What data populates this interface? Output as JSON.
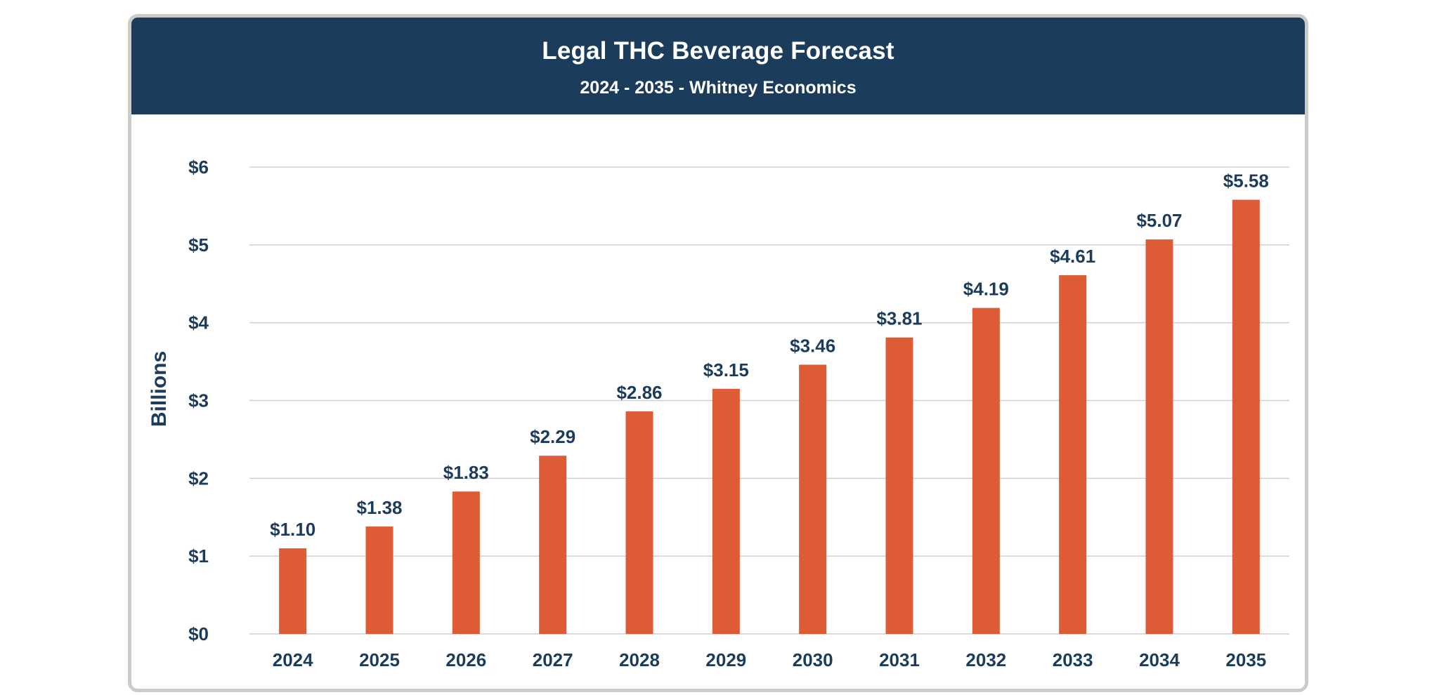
{
  "header": {
    "title": "Legal THC Beverage Forecast",
    "subtitle": "2024 - 2035 - Whitney Economics"
  },
  "colors": {
    "header_bg": "#1c3c5b",
    "bar": "#dd5b35",
    "text": "#1c3c5b",
    "gridline": "#cfcfcf",
    "card_border": "#cbccca"
  },
  "chart_data": {
    "type": "bar",
    "title": "Legal THC Beverage Forecast",
    "subtitle": "2024 - 2035 - Whitney Economics",
    "xlabel": "",
    "ylabel": "Billions",
    "categories": [
      "2024",
      "2025",
      "2026",
      "2027",
      "2028",
      "2029",
      "2030",
      "2031",
      "2032",
      "2033",
      "2034",
      "2035"
    ],
    "values": [
      1.1,
      1.38,
      1.83,
      2.29,
      2.86,
      3.15,
      3.46,
      3.81,
      4.19,
      4.61,
      5.07,
      5.58
    ],
    "data_labels": [
      "$1.10",
      "$1.38",
      "$1.83",
      "$2.29",
      "$2.86",
      "$3.15",
      "$3.46",
      "$3.81",
      "$4.19",
      "$4.61",
      "$5.07",
      "$5.58"
    ],
    "ylim": [
      0,
      6
    ],
    "yticks": [
      0,
      1,
      2,
      3,
      4,
      5,
      6
    ],
    "ytick_labels": [
      "$0",
      "$1",
      "$2",
      "$3",
      "$4",
      "$5",
      "$6"
    ],
    "grid": true,
    "legend": "none",
    "units": "USD billions"
  }
}
